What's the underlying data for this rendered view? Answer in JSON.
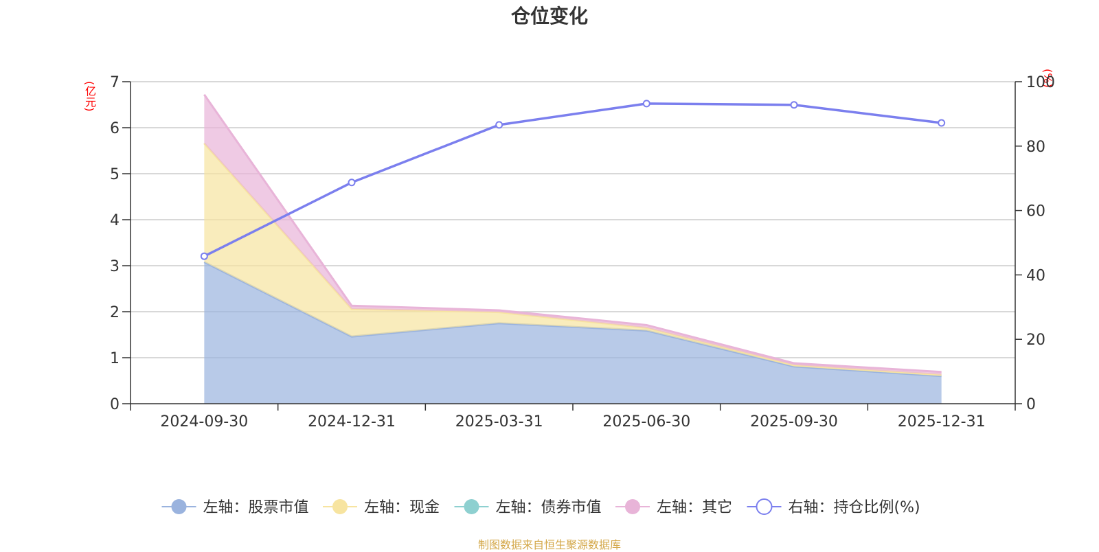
{
  "chart_data": {
    "type": "area",
    "title": "仓位变化",
    "left_axis_unit": "(亿元)",
    "right_axis_unit": "(%)",
    "categories": [
      "2024-09-30",
      "2024-12-31",
      "2025-03-31",
      "2025-06-30",
      "2025-09-30",
      "2025-12-31"
    ],
    "left_ylim": [
      0,
      7
    ],
    "left_yticks": [
      0,
      1,
      2,
      3,
      4,
      5,
      6,
      7
    ],
    "right_ylim": [
      0,
      100
    ],
    "right_yticks": [
      0,
      20,
      40,
      60,
      80,
      100
    ],
    "stacked": true,
    "grid": true,
    "legend_position": "bottom",
    "series": [
      {
        "name": "左轴：股票市值",
        "axis": "left",
        "type": "area",
        "color": "#9ab3de",
        "values": [
          3.08,
          1.46,
          1.75,
          1.59,
          0.81,
          0.6
        ]
      },
      {
        "name": "左轴：现金",
        "axis": "left",
        "type": "area",
        "color": "#f7e4a0",
        "values": [
          2.58,
          0.6,
          0.24,
          0.06,
          0.03,
          0.03
        ]
      },
      {
        "name": "左轴：债券市值",
        "axis": "left",
        "type": "area",
        "color": "#8ed0d0",
        "values": [
          0,
          0,
          0,
          0,
          0,
          0
        ]
      },
      {
        "name": "左轴：其它",
        "axis": "left",
        "type": "area",
        "color": "#e8b4d8",
        "values": [
          1.06,
          0.07,
          0.04,
          0.06,
          0.04,
          0.06
        ]
      },
      {
        "name": "右轴：持仓比例(%)",
        "axis": "right",
        "type": "line",
        "color": "#7b7fee",
        "values": [
          45.8,
          68.7,
          86.6,
          93.2,
          92.8,
          87.2
        ]
      }
    ]
  },
  "footer": {
    "source": "制图数据来自恒生聚源数据库"
  }
}
